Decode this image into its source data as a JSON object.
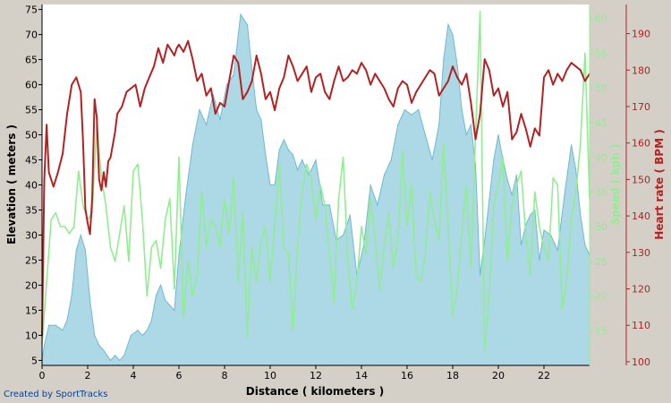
{
  "credit": "Created by SportTracks",
  "chart_data": {
    "type": "area",
    "title": "",
    "xlabel": "Distance ( kilometers )",
    "x_ticks": [
      0,
      2,
      4,
      6,
      8,
      10,
      12,
      14,
      16,
      18,
      20,
      22
    ],
    "xlim": [
      0,
      24
    ],
    "grid": false,
    "axes": {
      "elevation": {
        "label": "Elevation ( meters )",
        "ticks": [
          5,
          10,
          15,
          20,
          25,
          30,
          35,
          40,
          45,
          50,
          55,
          60,
          65,
          70,
          75
        ],
        "range": [
          4,
          76
        ],
        "color": "#000000",
        "side": "left"
      },
      "speed": {
        "label": "Speed ( kph )",
        "ticks": [
          15,
          20,
          25,
          30,
          35,
          40,
          45,
          50,
          55,
          60
        ],
        "range": [
          10,
          62
        ],
        "color": "#90ee90",
        "side": "right-inner"
      },
      "heart_rate": {
        "label": "Heart rate ( BPM )",
        "ticks": [
          100,
          110,
          120,
          130,
          140,
          150,
          160,
          170,
          180,
          190
        ],
        "range": [
          99,
          198
        ],
        "color": "#b22222",
        "side": "right-outer"
      }
    },
    "series": [
      {
        "name": "Elevation",
        "axis": "elevation",
        "kind": "area",
        "color": "#6fbad0",
        "fill": "#add8e6",
        "x": [
          0,
          0.1,
          0.3,
          0.6,
          0.9,
          1.1,
          1.3,
          1.5,
          1.7,
          1.9,
          2.1,
          2.3,
          2.5,
          2.7,
          3.0,
          3.2,
          3.4,
          3.6,
          3.9,
          4.2,
          4.4,
          4.6,
          4.8,
          5.0,
          5.2,
          5.4,
          5.6,
          5.8,
          6.0,
          6.3,
          6.6,
          6.9,
          7.2,
          7.5,
          7.8,
          8.1,
          8.4,
          8.7,
          9.0,
          9.2,
          9.4,
          9.6,
          9.8,
          10.0,
          10.2,
          10.4,
          10.6,
          10.8,
          11.0,
          11.2,
          11.4,
          11.7,
          12.0,
          12.3,
          12.6,
          12.9,
          13.2,
          13.5,
          13.8,
          14.1,
          14.4,
          14.7,
          15.0,
          15.3,
          15.6,
          15.9,
          16.2,
          16.5,
          16.8,
          17.1,
          17.4,
          17.6,
          17.8,
          18.0,
          18.2,
          18.4,
          18.6,
          18.8,
          19.0,
          19.2,
          19.4,
          19.6,
          19.8,
          20.0,
          20.2,
          20.4,
          20.6,
          20.8,
          21.0,
          21.2,
          21.4,
          21.6,
          21.8,
          22.0,
          22.3,
          22.6,
          22.9,
          23.2,
          23.4,
          23.6,
          23.8,
          24.0
        ],
        "values": [
          5,
          8,
          12,
          12,
          11,
          13,
          18,
          27,
          30,
          27,
          17,
          10,
          8,
          7,
          5,
          6,
          5,
          6,
          10,
          11,
          10,
          11,
          13,
          18,
          20,
          17,
          16,
          15,
          26,
          38,
          48,
          55,
          52,
          58,
          53,
          60,
          62,
          74,
          72,
          63,
          55,
          53,
          46,
          40,
          40,
          47,
          49,
          47,
          46,
          43,
          45,
          42,
          45,
          36,
          36,
          29,
          30,
          34,
          22,
          28,
          40,
          36,
          42,
          45,
          52,
          55,
          54,
          55,
          50,
          45,
          52,
          65,
          72,
          70,
          64,
          55,
          50,
          52,
          44,
          22,
          29,
          37,
          45,
          50,
          45,
          41,
          38,
          42,
          28,
          32,
          34,
          35,
          25,
          31,
          30,
          27,
          38,
          48,
          43,
          34,
          28,
          26
        ]
      },
      {
        "name": "Speed",
        "axis": "speed",
        "kind": "line",
        "color": "#90ee90",
        "x": [
          0,
          0.2,
          0.4,
          0.6,
          0.8,
          1.0,
          1.2,
          1.4,
          1.6,
          1.8,
          2.0,
          2.2,
          2.4,
          2.6,
          2.8,
          3.0,
          3.2,
          3.4,
          3.6,
          3.8,
          4.0,
          4.2,
          4.4,
          4.6,
          4.8,
          5.0,
          5.2,
          5.4,
          5.6,
          5.8,
          6.0,
          6.2,
          6.4,
          6.6,
          6.8,
          7.0,
          7.2,
          7.4,
          7.6,
          7.8,
          8.0,
          8.2,
          8.4,
          8.6,
          8.8,
          9.0,
          9.2,
          9.4,
          9.6,
          9.8,
          10.0,
          10.2,
          10.4,
          10.6,
          10.8,
          11.0,
          11.2,
          11.4,
          11.6,
          11.8,
          12.0,
          12.2,
          12.4,
          12.6,
          12.8,
          13.0,
          13.2,
          13.4,
          13.6,
          13.8,
          14.0,
          14.2,
          14.4,
          14.6,
          14.8,
          15.0,
          15.2,
          15.4,
          15.6,
          15.8,
          16.0,
          16.2,
          16.4,
          16.6,
          16.8,
          17.0,
          17.2,
          17.4,
          17.6,
          17.8,
          18.0,
          18.2,
          18.4,
          18.6,
          18.8,
          19.0,
          19.2,
          19.4,
          19.6,
          19.8,
          20.0,
          20.2,
          20.4,
          20.6,
          20.8,
          21.0,
          21.2,
          21.4,
          21.6,
          21.8,
          22.0,
          22.2,
          22.4,
          22.6,
          22.8,
          23.0,
          23.2,
          23.4,
          23.6,
          23.8,
          24.0
        ],
        "values": [
          13,
          22,
          31,
          32,
          30,
          30,
          29,
          30,
          38,
          33,
          31,
          32,
          45,
          37,
          33,
          27,
          25,
          29,
          33,
          25,
          38,
          39,
          31,
          20,
          27,
          28,
          24,
          31,
          34,
          21,
          40,
          17,
          25,
          20,
          23,
          35,
          27,
          31,
          30,
          27,
          34,
          29,
          37,
          22,
          32,
          14,
          27,
          22,
          28,
          30,
          22,
          30,
          39,
          27,
          26,
          15,
          27,
          35,
          39,
          37,
          31,
          36,
          33,
          26,
          19,
          34,
          40,
          25,
          18,
          22,
          30,
          26,
          34,
          28,
          21,
          27,
          32,
          24,
          28,
          41,
          30,
          36,
          23,
          22,
          26,
          35,
          31,
          28,
          42,
          30,
          17,
          21,
          29,
          36,
          24,
          43,
          61,
          12,
          20,
          33,
          36,
          40,
          25,
          33,
          36,
          38,
          29,
          23,
          35,
          30,
          27,
          25,
          37,
          36,
          18,
          22,
          31,
          35,
          42,
          55,
          34
        ]
      },
      {
        "name": "Heart rate",
        "axis": "heart_rate",
        "kind": "line",
        "color": "#b22222",
        "x": [
          0,
          0.1,
          0.2,
          0.3,
          0.5,
          0.7,
          0.9,
          1.1,
          1.3,
          1.5,
          1.7,
          1.8,
          1.9,
          2.0,
          2.1,
          2.2,
          2.3,
          2.4,
          2.5,
          2.6,
          2.7,
          2.8,
          2.9,
          3.0,
          3.2,
          3.3,
          3.5,
          3.7,
          3.9,
          4.1,
          4.3,
          4.5,
          4.7,
          4.9,
          5.1,
          5.3,
          5.5,
          5.7,
          5.8,
          5.9,
          6.0,
          6.2,
          6.4,
          6.6,
          6.8,
          7.0,
          7.2,
          7.4,
          7.6,
          7.8,
          8.0,
          8.2,
          8.4,
          8.6,
          8.8,
          9.0,
          9.2,
          9.4,
          9.6,
          9.8,
          10.0,
          10.2,
          10.4,
          10.6,
          10.8,
          11.0,
          11.2,
          11.4,
          11.6,
          11.8,
          12.0,
          12.2,
          12.4,
          12.6,
          12.8,
          13.0,
          13.2,
          13.4,
          13.6,
          13.8,
          14.0,
          14.2,
          14.4,
          14.6,
          14.8,
          15.0,
          15.2,
          15.4,
          15.6,
          15.8,
          16.0,
          16.2,
          16.4,
          16.6,
          16.8,
          17.0,
          17.2,
          17.4,
          17.6,
          17.8,
          18.0,
          18.2,
          18.4,
          18.6,
          18.8,
          19.0,
          19.2,
          19.4,
          19.6,
          19.8,
          20.0,
          20.2,
          20.4,
          20.6,
          20.8,
          21.0,
          21.2,
          21.4,
          21.6,
          21.8,
          22.0,
          22.2,
          22.4,
          22.6,
          22.8,
          23.0,
          23.2,
          23.4,
          23.6,
          23.8,
          24.0
        ],
        "values": [
          107,
          150,
          165,
          152,
          148,
          152,
          157,
          168,
          176,
          178,
          174,
          160,
          142,
          138,
          135,
          145,
          172,
          167,
          150,
          147,
          152,
          148,
          155,
          156,
          163,
          168,
          170,
          174,
          175,
          176,
          170,
          175,
          178,
          181,
          186,
          182,
          187,
          185,
          184,
          186,
          187,
          185,
          188,
          183,
          177,
          179,
          173,
          175,
          168,
          171,
          170,
          177,
          184,
          182,
          172,
          174,
          177,
          184,
          179,
          172,
          174,
          169,
          175,
          178,
          184,
          181,
          177,
          179,
          181,
          174,
          178,
          179,
          174,
          172,
          177,
          181,
          177,
          178,
          180,
          179,
          182,
          180,
          176,
          179,
          177,
          175,
          172,
          170,
          175,
          177,
          176,
          171,
          174,
          176,
          178,
          180,
          179,
          173,
          175,
          177,
          181,
          178,
          176,
          179,
          171,
          161,
          168,
          183,
          180,
          173,
          175,
          170,
          174,
          161,
          163,
          168,
          164,
          159,
          164,
          162,
          178,
          180,
          176,
          179,
          177,
          180,
          182,
          181,
          180,
          177,
          179
        ]
      }
    ]
  }
}
